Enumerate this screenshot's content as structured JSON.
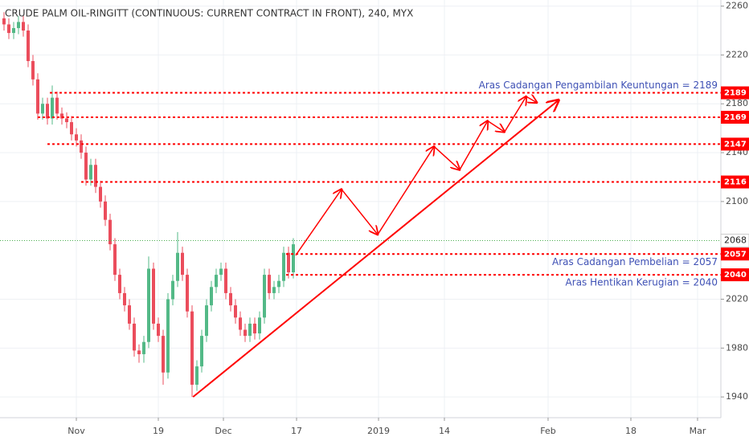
{
  "chart_data": {
    "type": "candlestick",
    "title": "CRUDE PALM OIL-RINGITT (CONTINUOUS: CURRENT CONTRACT IN FRONT), 240, MYX",
    "x": [
      0,
      1,
      2,
      3,
      4,
      5,
      6,
      7,
      8,
      9,
      10,
      11,
      12,
      13,
      14,
      15,
      16,
      17,
      18,
      19,
      20,
      21,
      22,
      23,
      24,
      25,
      26,
      27,
      28,
      29,
      30,
      31,
      32,
      33,
      34,
      35,
      36,
      37,
      38,
      39,
      40,
      41,
      42,
      43,
      44,
      45,
      46,
      47,
      48,
      49,
      50,
      51,
      52,
      53,
      54,
      55,
      56,
      57,
      58,
      59,
      60
    ],
    "open": [
      2250,
      2245,
      2238,
      2242,
      2247,
      2240,
      2215,
      2200,
      2172,
      2180,
      2168,
      2185,
      2172,
      2168,
      2165,
      2155,
      2150,
      2140,
      2118,
      2130,
      2112,
      2100,
      2085,
      2065,
      2040,
      2025,
      2015,
      2000,
      1978,
      1975,
      1985,
      2045,
      2000,
      1990,
      1960,
      2020,
      2035,
      2058,
      2040,
      2010,
      1950,
      1965,
      1990,
      2015,
      2030,
      2040,
      2045,
      2025,
      2015,
      2005,
      1995,
      1990,
      2000,
      1992,
      2005,
      2040,
      2025,
      2030,
      2035,
      2058,
      2042
    ],
    "high": [
      2255,
      2250,
      2247,
      2252,
      2252,
      2245,
      2220,
      2205,
      2185,
      2185,
      2195,
      2190,
      2177,
      2173,
      2170,
      2160,
      2155,
      2145,
      2135,
      2135,
      2117,
      2105,
      2090,
      2070,
      2045,
      2030,
      2020,
      2005,
      1983,
      1990,
      2055,
      2050,
      2005,
      1995,
      2025,
      2040,
      2075,
      2063,
      2045,
      2015,
      1970,
      1995,
      2020,
      2035,
      2045,
      2050,
      2050,
      2030,
      2020,
      2010,
      2000,
      2005,
      2005,
      2010,
      2045,
      2045,
      2035,
      2040,
      2063,
      2063,
      2070
    ],
    "low": [
      2240,
      2233,
      2233,
      2237,
      2235,
      2210,
      2195,
      2167,
      2167,
      2163,
      2163,
      2167,
      2163,
      2160,
      2150,
      2145,
      2135,
      2113,
      2113,
      2107,
      2095,
      2080,
      2060,
      2035,
      2020,
      2010,
      1995,
      1973,
      1968,
      1968,
      1980,
      1995,
      1985,
      1950,
      1955,
      2015,
      2030,
      2035,
      2005,
      1940,
      1945,
      1960,
      1985,
      2010,
      2025,
      2035,
      2020,
      2010,
      2000,
      1990,
      1985,
      1985,
      1987,
      1987,
      2000,
      2020,
      2020,
      2025,
      2030,
      2037,
      2037
    ],
    "close": [
      2245,
      2238,
      2242,
      2247,
      2240,
      2215,
      2200,
      2172,
      2180,
      2168,
      2185,
      2172,
      2168,
      2165,
      2155,
      2150,
      2140,
      2118,
      2130,
      2112,
      2100,
      2085,
      2065,
      2040,
      2025,
      2015,
      2000,
      1978,
      1975,
      1985,
      2045,
      2000,
      1990,
      1960,
      2020,
      2035,
      2058,
      2040,
      2010,
      1950,
      1965,
      1990,
      2015,
      2030,
      2040,
      2045,
      2025,
      2015,
      2005,
      1995,
      1990,
      2000,
      1992,
      2005,
      2040,
      2025,
      2030,
      2035,
      2058,
      2042,
      2065
    ],
    "up_color": "#53b987",
    "down_color": "#eb4d5c",
    "xlim": [
      -0.833,
      148.667
    ],
    "ylim": [
      1923,
      2265
    ],
    "xticks": [
      {
        "value": 15,
        "label": "Nov"
      },
      {
        "value": 32,
        "label": "19"
      },
      {
        "value": 45.5,
        "label": "Dec"
      },
      {
        "value": 60.67,
        "label": "17"
      },
      {
        "value": 77.67,
        "label": "2019"
      },
      {
        "value": 91.33,
        "label": "14"
      },
      {
        "value": 112.83,
        "label": "Feb"
      },
      {
        "value": 130,
        "label": "18"
      },
      {
        "value": 143.83,
        "label": "Mar"
      }
    ],
    "yticks": [
      1940,
      1980,
      2020,
      2100,
      2140,
      2180,
      2220,
      2260
    ],
    "grid": true,
    "last_price": 2068,
    "last_price_color": "#4caf50",
    "level_color": "#ff0000",
    "note_color": "#3f51b5",
    "levels": [
      {
        "value": 2189,
        "x_start": 9.5,
        "note": "Aras Cadangan Pengambilan Keuntungan = 2189"
      },
      {
        "value": 2169,
        "x_start": 7
      },
      {
        "value": 2147,
        "x_start": 9
      },
      {
        "value": 2116,
        "x_start": 16
      },
      {
        "value": 2057,
        "x_start": 58.5,
        "note": "Aras Cadangan Pembelian = 2057"
      },
      {
        "value": 2040,
        "x_start": 58.5,
        "note": "Aras Hentikan Kerugian = 2040"
      }
    ],
    "projection": {
      "x": [
        60.5,
        70,
        77.5,
        89.2,
        94.5,
        100.3,
        103.8,
        108.3,
        110.5
      ],
      "y": [
        2056,
        2110,
        2073,
        2145,
        2126,
        2166,
        2157,
        2186,
        2181
      ]
    },
    "trendline": {
      "x": [
        39.2,
        115
      ],
      "y": [
        1940,
        2183
      ]
    }
  }
}
